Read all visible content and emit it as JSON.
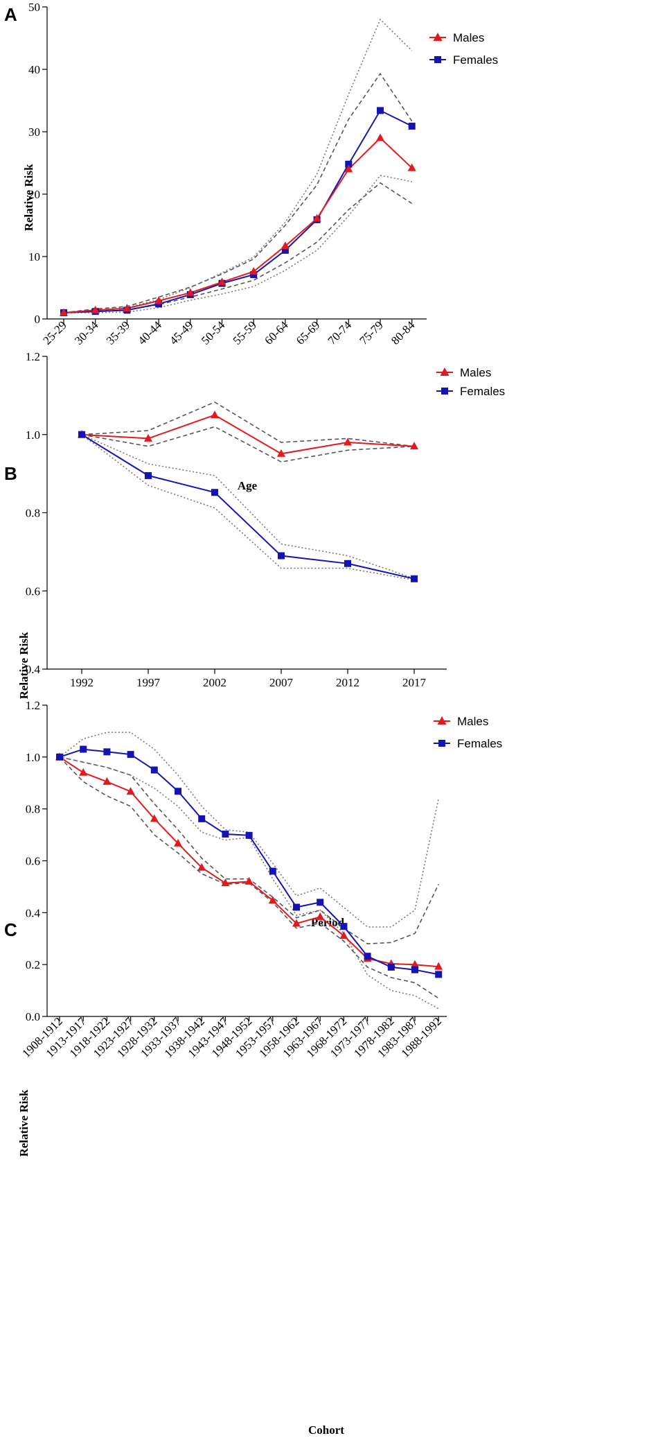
{
  "chart_data": [
    {
      "panel": "A",
      "type": "line",
      "title": "",
      "xlabel": "Age",
      "ylabel": "Relative Risk",
      "ylim": [
        0,
        50
      ],
      "yticks": [
        "0",
        "10",
        "20",
        "30",
        "40",
        "50"
      ],
      "categories": [
        "25-29",
        "30-34",
        "35-39",
        "40-44",
        "45-49",
        "50-54",
        "55-59",
        "60-64",
        "65-69",
        "70-74",
        "75-79",
        "80-84"
      ],
      "series": [
        {
          "name": "Males",
          "color": "#e31a1c",
          "marker": "triangle",
          "values": [
            1.0,
            1.4,
            1.7,
            2.9,
            4.2,
            5.9,
            7.6,
            11.7,
            16.1,
            24.0,
            29.0,
            24.2
          ],
          "ci_lower": [
            1.0,
            1.2,
            1.45,
            2.3,
            3.5,
            4.8,
            6.2,
            9.0,
            12.3,
            17.5,
            21.8,
            18.5
          ],
          "ci_upper": [
            1.0,
            1.6,
            2.0,
            3.5,
            5.1,
            7.2,
            9.6,
            15.0,
            21.5,
            32.0,
            39.3,
            31.7
          ]
        },
        {
          "name": "Females",
          "color": "#1414b4",
          "marker": "square",
          "values": [
            1.0,
            1.2,
            1.4,
            2.4,
            3.9,
            5.7,
            7.1,
            11.0,
            15.9,
            24.8,
            33.4,
            30.9
          ],
          "ci_lower": [
            1.0,
            1.0,
            1.1,
            1.8,
            3.0,
            4.0,
            5.2,
            7.8,
            11.0,
            16.5,
            23.0,
            22.0
          ],
          "ci_upper": [
            1.0,
            1.4,
            1.8,
            3.1,
            5.0,
            7.4,
            9.9,
            15.5,
            23.2,
            36.0,
            48.0,
            43.0
          ]
        }
      ],
      "legend": [
        "Males",
        "Females"
      ],
      "legend_position": "top-right",
      "grid": false
    },
    {
      "panel": "B",
      "type": "line",
      "title": "",
      "xlabel": "Period",
      "ylabel": "Relative Risk",
      "ylim": [
        0.4,
        1.2
      ],
      "yticks": [
        "0.4",
        "0.6",
        "0.8",
        "1.0",
        "1.2"
      ],
      "categories": [
        "1992",
        "1997",
        "2002",
        "2007",
        "2012",
        "2017"
      ],
      "series": [
        {
          "name": "Males",
          "color": "#e31a1c",
          "marker": "triangle",
          "values": [
            1.0,
            0.99,
            1.05,
            0.951,
            0.98,
            0.97
          ],
          "ci_lower": [
            1.0,
            0.97,
            1.02,
            0.93,
            0.96,
            0.97
          ],
          "ci_upper": [
            1.0,
            1.01,
            1.083,
            0.98,
            0.99,
            0.97
          ]
        },
        {
          "name": "Females",
          "color": "#1414b4",
          "marker": "square",
          "values": [
            1.0,
            0.895,
            0.852,
            0.69,
            0.67,
            0.631
          ],
          "ci_lower": [
            1.0,
            0.87,
            0.812,
            0.658,
            0.658,
            0.628
          ],
          "ci_upper": [
            1.0,
            0.925,
            0.895,
            0.72,
            0.69,
            0.632
          ]
        }
      ],
      "legend": [
        "Males",
        "Females"
      ],
      "legend_position": "top-right",
      "grid": false
    },
    {
      "panel": "C",
      "type": "line",
      "title": "",
      "xlabel": "Cohort",
      "ylabel": "Relative Risk",
      "ylim": [
        0.0,
        1.2
      ],
      "yticks": [
        "0.0",
        "0.2",
        "0.4",
        "0.6",
        "0.8",
        "1.0",
        "1.2"
      ],
      "categories": [
        "1908-1912",
        "1913-1917",
        "1918-1922",
        "1923-1927",
        "1928-1932",
        "1933-1937",
        "1938-1942",
        "1943-1947",
        "1948-1952",
        "1953-1957",
        "1958-1962",
        "1963-1967",
        "1968-1972",
        "1973-1977",
        "1978-1982",
        "1983-1987",
        "1988-1992"
      ],
      "series": [
        {
          "name": "Males",
          "color": "#e31a1c",
          "marker": "triangle",
          "values": [
            1.0,
            0.94,
            0.905,
            0.867,
            0.762,
            0.667,
            0.574,
            0.514,
            0.52,
            0.447,
            0.358,
            0.384,
            0.311,
            0.223,
            0.203,
            0.2,
            0.192
          ],
          "ci_lower": [
            1.0,
            0.905,
            0.85,
            0.81,
            0.7,
            0.63,
            0.55,
            0.51,
            0.515,
            0.44,
            0.34,
            0.36,
            0.29,
            0.19,
            0.15,
            0.13,
            0.07
          ],
          "ci_upper": [
            1.0,
            0.98,
            0.96,
            0.93,
            0.82,
            0.72,
            0.61,
            0.53,
            0.53,
            0.46,
            0.38,
            0.41,
            0.34,
            0.28,
            0.285,
            0.32,
            0.51
          ]
        },
        {
          "name": "Females",
          "color": "#1414b4",
          "marker": "square",
          "values": [
            1.0,
            1.03,
            1.02,
            1.01,
            0.95,
            0.868,
            0.762,
            0.703,
            0.698,
            0.56,
            0.421,
            0.44,
            0.347,
            0.232,
            0.19,
            0.18,
            0.162
          ],
          "ci_lower": [
            1.0,
            0.98,
            0.96,
            0.93,
            0.88,
            0.81,
            0.71,
            0.68,
            0.69,
            0.53,
            0.39,
            0.41,
            0.32,
            0.16,
            0.1,
            0.08,
            0.03
          ],
          "ci_upper": [
            1.0,
            1.07,
            1.095,
            1.095,
            1.03,
            0.93,
            0.81,
            0.72,
            0.71,
            0.59,
            0.465,
            0.495,
            0.42,
            0.345,
            0.345,
            0.41,
            0.84
          ]
        }
      ],
      "legend": [
        "Males",
        "Females"
      ],
      "legend_position": "top-right",
      "grid": false
    }
  ]
}
